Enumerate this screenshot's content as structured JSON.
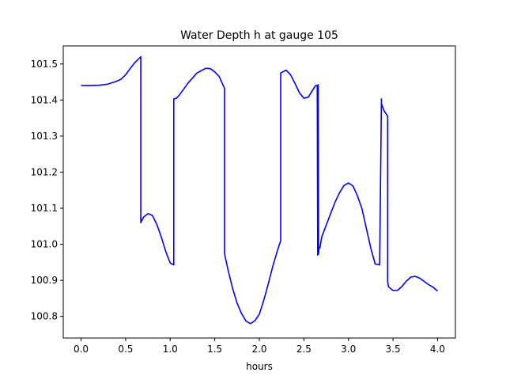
{
  "chart_data": {
    "type": "line",
    "title": "Water Depth h at gauge 105",
    "xlabel": "hours",
    "ylabel": "",
    "xlim": [
      -0.2,
      4.2
    ],
    "ylim": [
      100.74,
      101.55
    ],
    "grid": false,
    "x_ticks": [
      0.0,
      0.5,
      1.0,
      1.5,
      2.0,
      2.5,
      3.0,
      3.5,
      4.0
    ],
    "x_tick_labels": [
      "0.0",
      "0.5",
      "1.0",
      "1.5",
      "2.0",
      "2.5",
      "3.0",
      "3.5",
      "4.0"
    ],
    "y_ticks": [
      100.8,
      100.9,
      101.0,
      101.1,
      101.2,
      101.3,
      101.4,
      101.5
    ],
    "y_tick_labels": [
      "100.8",
      "100.9",
      "101.0",
      "101.1",
      "101.2",
      "101.3",
      "101.4",
      "101.5"
    ],
    "series": [
      {
        "color": "#0000ff",
        "x": [
          0.0,
          0.1,
          0.2,
          0.3,
          0.4,
          0.45,
          0.5,
          0.55,
          0.6,
          0.65,
          0.67,
          0.67,
          0.7,
          0.75,
          0.8,
          0.85,
          0.9,
          0.95,
          1.0,
          1.04,
          1.04,
          1.07,
          1.1,
          1.2,
          1.3,
          1.4,
          1.45,
          1.5,
          1.55,
          1.6,
          1.61,
          1.61,
          1.65,
          1.7,
          1.75,
          1.8,
          1.85,
          1.9,
          1.95,
          2.0,
          2.05,
          2.1,
          2.15,
          2.2,
          2.24,
          2.24,
          2.3,
          2.35,
          2.4,
          2.45,
          2.5,
          2.55,
          2.6,
          2.63,
          2.65,
          2.655,
          2.66,
          2.665,
          2.668,
          2.672,
          2.68,
          2.7,
          2.75,
          2.8,
          2.85,
          2.9,
          2.95,
          3.0,
          3.05,
          3.1,
          3.15,
          3.2,
          3.25,
          3.3,
          3.35,
          3.37,
          3.37,
          3.4,
          3.44,
          3.44,
          3.45,
          3.5,
          3.55,
          3.6,
          3.65,
          3.7,
          3.75,
          3.8,
          3.85,
          3.9,
          3.95,
          4.0
        ],
        "y": [
          101.44,
          101.44,
          101.441,
          101.444,
          101.452,
          101.458,
          101.47,
          101.487,
          101.503,
          101.515,
          101.52,
          101.06,
          101.075,
          101.085,
          101.08,
          101.055,
          101.02,
          100.98,
          100.948,
          100.943,
          101.403,
          101.405,
          101.413,
          101.447,
          101.475,
          101.488,
          101.487,
          101.478,
          101.465,
          101.437,
          101.433,
          100.973,
          100.928,
          100.878,
          100.837,
          100.808,
          100.787,
          100.78,
          100.788,
          100.806,
          100.845,
          100.89,
          100.938,
          100.98,
          101.01,
          101.475,
          101.483,
          101.47,
          101.446,
          101.42,
          101.405,
          101.408,
          101.428,
          101.44,
          101.44,
          100.97,
          101.443,
          100.973,
          100.985,
          100.99,
          100.99,
          101.02,
          101.053,
          101.085,
          101.117,
          101.143,
          101.163,
          101.17,
          101.162,
          101.135,
          101.1,
          101.045,
          100.99,
          100.945,
          100.943,
          101.403,
          101.39,
          101.37,
          101.355,
          100.895,
          100.882,
          100.872,
          100.872,
          100.883,
          100.898,
          100.909,
          100.911,
          100.906,
          100.897,
          100.888,
          100.881,
          100.87
        ]
      }
    ]
  }
}
